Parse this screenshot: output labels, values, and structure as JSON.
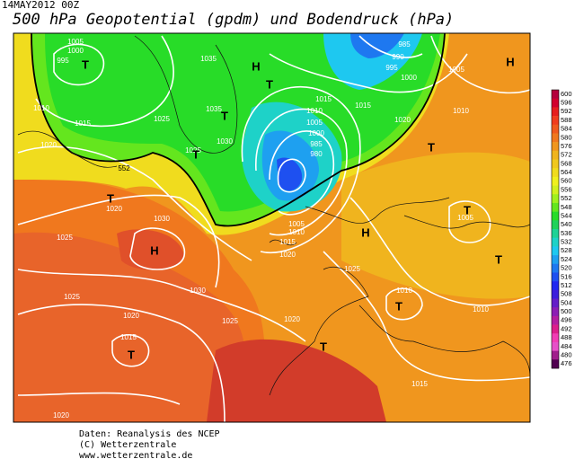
{
  "map": {
    "date": "14MAY2012 00Z",
    "title": "500 hPa Geopotential (gpdm) und Bodendruck (hPa)",
    "labels": [
      "1005",
      "1000",
      "995",
      "T",
      "1010",
      "1015",
      "1025",
      "1035",
      "H",
      "1035",
      "T",
      "1030",
      "1025",
      "T",
      "1020",
      "552",
      "T",
      "1020",
      "1030",
      "1025",
      "H",
      "1030",
      "1025",
      "1020",
      "1025",
      "1015",
      "T",
      "1020",
      "T",
      "1015",
      "1020",
      "1015",
      "1010",
      "1005",
      "1000",
      "985",
      "980",
      "T",
      "985",
      "990",
      "995",
      "1000",
      "1005",
      "H",
      "1015",
      "1020",
      "1010",
      "T",
      "1005",
      "1010",
      "1015",
      "1020",
      "H",
      "1025",
      "1010",
      "T",
      "1010",
      "T",
      "T",
      "1005"
    ],
    "colorbar": {
      "levels": [
        600,
        596,
        592,
        588,
        584,
        580,
        576,
        572,
        568,
        564,
        560,
        556,
        552,
        548,
        544,
        540,
        536,
        532,
        528,
        524,
        520,
        516,
        512,
        508,
        504,
        500,
        496,
        492,
        488,
        484,
        480,
        476
      ],
      "colors": [
        "#b4003c",
        "#d2002d",
        "#e61e1e",
        "#f03c1e",
        "#f05a1e",
        "#f0781e",
        "#f0961e",
        "#f0b41e",
        "#f0c81e",
        "#f0dc1e",
        "#f0f01e",
        "#d2f01e",
        "#a0f01e",
        "#64e61e",
        "#28dc28",
        "#1ed25a",
        "#1ed296",
        "#1ed2c8",
        "#1ec8f0",
        "#1ea0f0",
        "#1e78f0",
        "#1e50f0",
        "#1e28f0",
        "#3c1edc",
        "#641ec8",
        "#8c1eb4",
        "#b41ea0",
        "#dc1e8c",
        "#f03cb4",
        "#e650c8",
        "#a01e8c",
        "#500050"
      ]
    },
    "footer": [
      "Daten: Reanalysis des NCEP",
      "(C) Wetterzentrale",
      "www.wetterzentrale.de"
    ]
  }
}
